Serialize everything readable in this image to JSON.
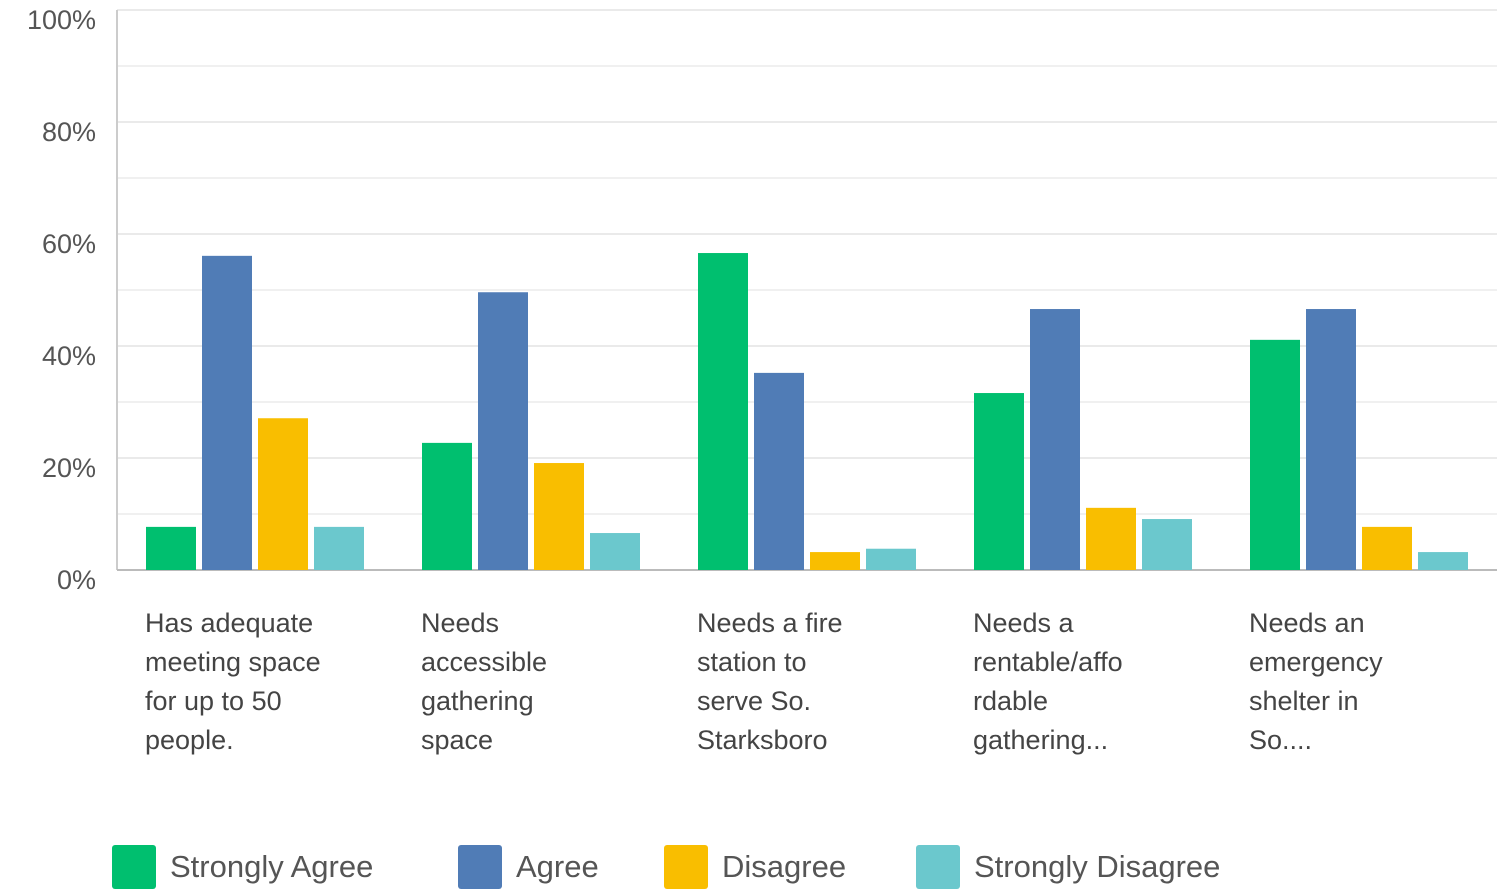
{
  "chart_data": {
    "type": "bar",
    "categories": [
      "Has adequate\nmeeting space\nfor up to 50\npeople.",
      "Needs\naccessible\ngathering\nspace",
      "Needs a fire\nstation to\nserve So.\nStarksboro",
      "Needs a\nrentable/affo\nrdable\ngathering...",
      "Needs an\nemergency\nshelter in\nSo...."
    ],
    "series": [
      {
        "name": "Strongly Agree",
        "color": "#00bf6f",
        "values": [
          7.7,
          22.7,
          56.6,
          31.6,
          41.1
        ]
      },
      {
        "name": "Agree",
        "color": "#507cb6",
        "values": [
          56.1,
          49.6,
          35.2,
          46.6,
          46.6
        ]
      },
      {
        "name": "Disagree",
        "color": "#f9be00",
        "values": [
          27.1,
          19.1,
          3.2,
          11.1,
          7.7
        ]
      },
      {
        "name": "Strongly Disagree",
        "color": "#6bc8cd",
        "values": [
          7.7,
          6.6,
          3.8,
          9.1,
          3.2
        ]
      }
    ],
    "ylim": [
      0,
      100
    ],
    "yticks": [
      {
        "value": 0,
        "label": "0%"
      },
      {
        "value": 20,
        "label": "20%"
      },
      {
        "value": 40,
        "label": "40%"
      },
      {
        "value": 60,
        "label": "60%"
      },
      {
        "value": 80,
        "label": "80%"
      },
      {
        "value": 100,
        "label": "100%"
      }
    ],
    "minor_yticks": [
      10,
      30,
      50,
      70,
      90
    ],
    "grid": true,
    "legend": "bottom"
  }
}
